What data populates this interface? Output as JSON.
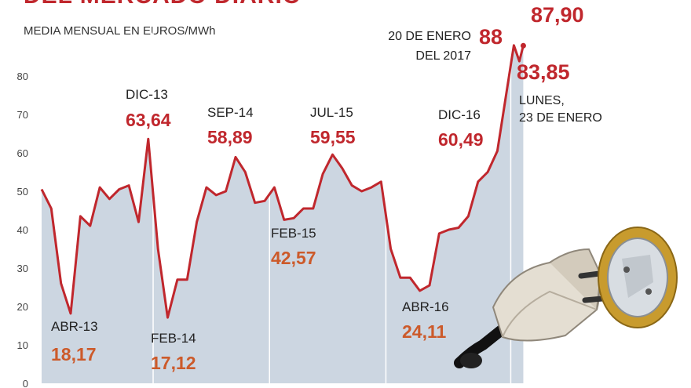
{
  "title": "DEL MERCADO DIARIO",
  "subtitle": "MEDIA MENSUAL EN EUROS/MWh",
  "colors": {
    "line": "#c0272d",
    "area": "#ccd6e1",
    "label_red": "#c0272d",
    "label_orange": "#cc5a2a",
    "axis_text": "#444444"
  },
  "chart_data": {
    "type": "area",
    "title": "DEL MERCADO DIARIO",
    "ylabel": "MEDIA MENSUAL EN EUROS/MWh",
    "ylim": [
      0,
      90
    ],
    "yticks": [
      0,
      10,
      20,
      30,
      40,
      50,
      60,
      70,
      80
    ],
    "grid": false,
    "x_unit": "month index starting Jan 2013",
    "series": [
      {
        "values": [
          50.5,
          45.5,
          26,
          18.17,
          43.5,
          41,
          51,
          48,
          50.5,
          51.5,
          42,
          63.64,
          35,
          17.12,
          27,
          27,
          42,
          51,
          49,
          50,
          58.89,
          55,
          47,
          47.5,
          51,
          42.57,
          43,
          45.5,
          45.5,
          54.5,
          59.55,
          56,
          51.5,
          50,
          51,
          52.5,
          35,
          27.5,
          27.5,
          24.11,
          25.5,
          39,
          40,
          40.5,
          43.5,
          52.5,
          55,
          60.49
        ]
      }
    ],
    "extra_points": [
      {
        "label": "20 DE ENERO DEL 2017",
        "value": 88
      },
      {
        "label": "LUNES, 23 DE ENERO",
        "value": 83.85
      },
      {
        "value": 87.9
      }
    ],
    "annotations": [
      {
        "id": "abr13",
        "name": "ABR-13",
        "value": "18,17"
      },
      {
        "id": "dic13",
        "name": "DIC-13",
        "value": "63,64"
      },
      {
        "id": "feb14",
        "name": "FEB-14",
        "value": "17,12"
      },
      {
        "id": "sep14",
        "name": "SEP-14",
        "value": "58,89"
      },
      {
        "id": "feb15",
        "name": "FEB-15",
        "value": "42,57"
      },
      {
        "id": "jul15",
        "name": "JUL-15",
        "value": "59,55"
      },
      {
        "id": "abr16",
        "name": "ABR-16",
        "value": "24,11"
      },
      {
        "id": "dic16",
        "name": "DIC-16",
        "value": "60,49"
      }
    ],
    "callouts": {
      "jan20_label": [
        "20 DE ENERO",
        "DEL 2017"
      ],
      "jan20_value": "88",
      "last_value": "87,90",
      "jan23_value": "83,85",
      "jan23_label": [
        "LUNES,",
        "23 DE ENERO"
      ]
    }
  }
}
